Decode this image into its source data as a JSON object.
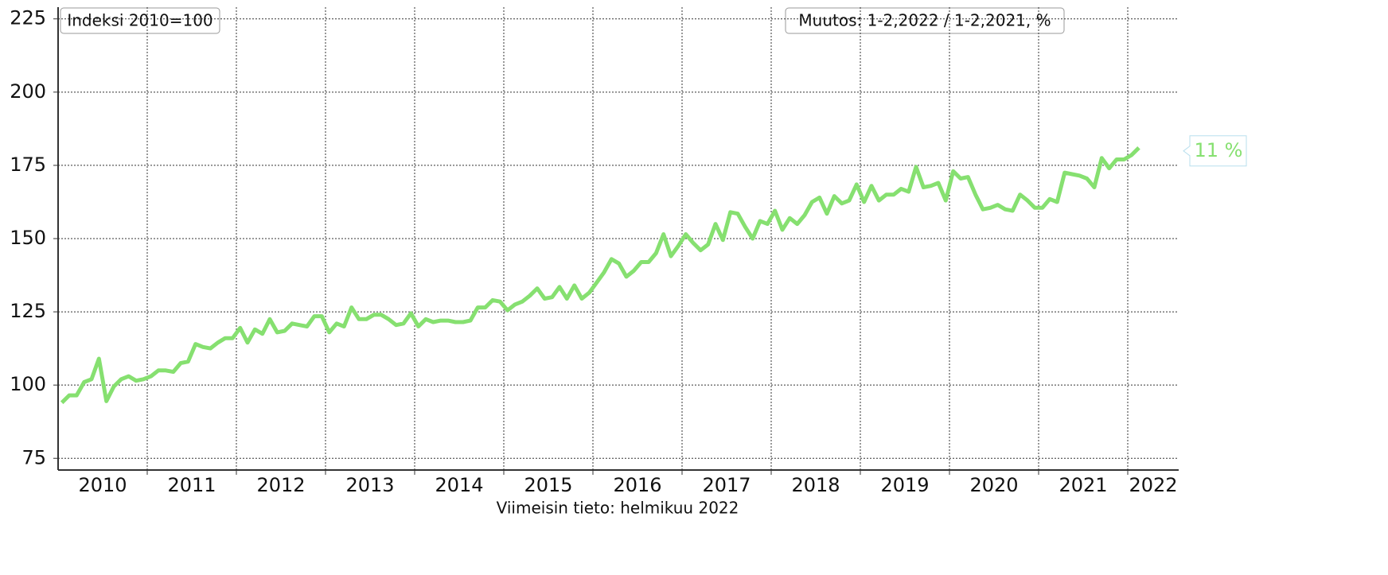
{
  "chart_data": {
    "type": "line",
    "annotations": [
      "Indeksi 2010=100",
      "Muutos: 1-2,2022 / 1-2,2021, %"
    ],
    "x_label": "Viimeisin tieto: helmikuu 2022",
    "categories": [
      "2010",
      "2011",
      "2012",
      "2013",
      "2014",
      "2015",
      "2016",
      "2017",
      "2018",
      "2019",
      "2020",
      "2021",
      "2022"
    ],
    "series": [
      {
        "color": "#86e070",
        "values": [
          [
            94,
            96.5,
            96.5,
            101,
            102,
            109,
            94.5,
            99.5,
            102,
            103,
            101.5,
            102
          ],
          [
            103,
            105,
            105,
            104.5,
            107.5,
            108,
            114,
            113,
            112.5,
            114.5,
            116,
            116
          ],
          [
            119.5,
            114.5,
            119,
            117.5,
            122.5,
            118,
            118.5,
            121,
            120.5,
            120,
            123.5,
            123.5
          ],
          [
            118,
            121,
            120,
            126.5,
            122.5,
            122.5,
            124,
            124,
            122.5,
            120.5,
            121,
            124.5
          ],
          [
            120,
            122.5,
            121.5,
            122,
            122,
            121.5,
            121.5,
            122,
            126.5,
            126.5,
            129,
            128.5
          ],
          [
            125.5,
            127.5,
            128.5,
            130.5,
            133,
            129.5,
            130,
            133.5,
            129.5,
            134,
            129.5,
            131.5
          ],
          [
            135,
            138.5,
            143,
            141.5,
            137,
            139,
            142,
            142,
            145,
            151.5,
            144,
            147.5
          ],
          [
            151.5,
            148.5,
            146,
            148,
            155,
            149.5,
            159,
            158.5,
            154,
            150,
            156,
            155
          ],
          [
            159.5,
            153,
            157,
            155,
            158,
            162.5,
            164,
            158.5,
            164.5,
            162,
            163,
            168.5
          ],
          [
            162.5,
            168,
            163,
            165,
            165,
            167,
            166,
            174.5,
            167.5,
            168,
            169,
            163
          ],
          [
            173,
            170.5,
            171,
            165,
            160,
            160.5,
            161.5,
            160,
            159.5,
            165,
            163,
            160.5
          ],
          [
            160.5,
            163.5,
            162.5,
            172.5,
            172,
            171.5,
            170.5,
            167.5,
            177.5,
            174,
            177,
            177
          ],
          [
            178.5,
            181
          ]
        ]
      }
    ],
    "change": 11,
    "change_label": "11 %",
    "ylim": [
      71,
      229
    ],
    "yticks": [
      75,
      100,
      125,
      150,
      175,
      200,
      225
    ],
    "grid": true
  }
}
